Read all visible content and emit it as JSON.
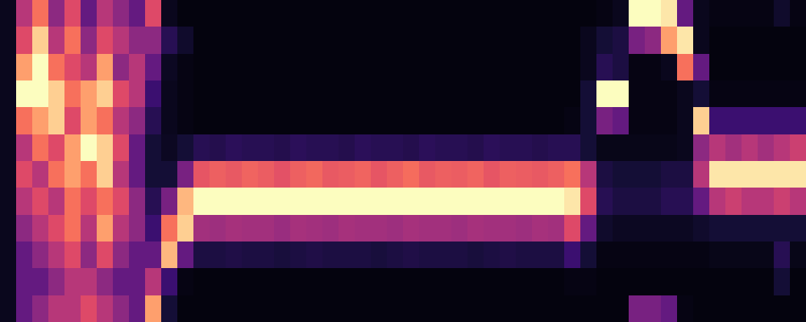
{
  "chart_data": {
    "type": "heatmap",
    "tick_labels": false,
    "grid": false,
    "xlim": [
      -0.5,
      49.5
    ],
    "ylim": [
      11.5,
      -0.5
    ],
    "zlim": [
      0,
      1
    ],
    "cells": [
      [
        0.05,
        0.5,
        0.7,
        0.4,
        0.6,
        0.3,
        0.5,
        0.4,
        0.3,
        0.6,
        0.05,
        0.02,
        0.02,
        0.02,
        0.02,
        0.02,
        0.02,
        0.02,
        0.02,
        0.02,
        0.02,
        0.02,
        0.02,
        0.02,
        0.02,
        0.02,
        0.02,
        0.02,
        0.02,
        0.02,
        0.02,
        0.02,
        0.02,
        0.02,
        0.02,
        0.02,
        0.02,
        0.03,
        0.05,
        1.0,
        1.0,
        0.95,
        0.3,
        0.05,
        0.03,
        0.03,
        0.03,
        0.03,
        0.08,
        0.03
      ],
      [
        0.05,
        0.6,
        0.9,
        0.5,
        0.7,
        0.4,
        0.6,
        0.5,
        0.4,
        0.4,
        0.15,
        0.08,
        0.02,
        0.02,
        0.02,
        0.02,
        0.02,
        0.02,
        0.02,
        0.02,
        0.02,
        0.02,
        0.02,
        0.02,
        0.02,
        0.02,
        0.02,
        0.02,
        0.02,
        0.02,
        0.02,
        0.02,
        0.02,
        0.02,
        0.02,
        0.02,
        0.05,
        0.1,
        0.12,
        0.35,
        0.4,
        0.8,
        0.95,
        0.05,
        0.02,
        0.02,
        0.02,
        0.02,
        0.02,
        0.02
      ],
      [
        0.05,
        0.8,
        1.0,
        0.7,
        0.6,
        0.5,
        0.8,
        0.4,
        0.5,
        0.3,
        0.06,
        0.03,
        0.02,
        0.02,
        0.02,
        0.02,
        0.02,
        0.02,
        0.02,
        0.02,
        0.02,
        0.02,
        0.02,
        0.02,
        0.02,
        0.02,
        0.02,
        0.02,
        0.02,
        0.02,
        0.02,
        0.02,
        0.02,
        0.02,
        0.02,
        0.02,
        0.05,
        0.15,
        0.12,
        0.03,
        0.03,
        0.05,
        0.7,
        0.3,
        0.02,
        0.02,
        0.02,
        0.02,
        0.02,
        0.02
      ],
      [
        0.05,
        1.0,
        1.0,
        0.9,
        0.7,
        0.8,
        0.9,
        0.6,
        0.5,
        0.2,
        0.05,
        0.03,
        0.02,
        0.02,
        0.02,
        0.02,
        0.02,
        0.02,
        0.02,
        0.02,
        0.02,
        0.02,
        0.02,
        0.02,
        0.02,
        0.02,
        0.02,
        0.02,
        0.02,
        0.02,
        0.02,
        0.02,
        0.02,
        0.02,
        0.02,
        0.02,
        0.1,
        1.0,
        1.0,
        0.03,
        0.03,
        0.03,
        0.05,
        0.1,
        0.03,
        0.03,
        0.03,
        0.03,
        0.03,
        0.03
      ],
      [
        0.05,
        0.7,
        0.8,
        0.9,
        0.6,
        0.8,
        0.7,
        0.5,
        0.4,
        0.15,
        0.05,
        0.03,
        0.02,
        0.02,
        0.02,
        0.02,
        0.02,
        0.02,
        0.02,
        0.02,
        0.02,
        0.02,
        0.02,
        0.02,
        0.02,
        0.02,
        0.02,
        0.02,
        0.02,
        0.02,
        0.02,
        0.02,
        0.02,
        0.02,
        0.02,
        0.03,
        0.1,
        0.35,
        0.3,
        0.03,
        0.03,
        0.03,
        0.05,
        0.9,
        0.2,
        0.2,
        0.2,
        0.2,
        0.2,
        0.2
      ],
      [
        0.05,
        0.5,
        0.7,
        0.6,
        0.8,
        1.0,
        0.9,
        0.6,
        0.3,
        0.1,
        0.06,
        0.1,
        0.15,
        0.14,
        0.16,
        0.15,
        0.15,
        0.14,
        0.16,
        0.15,
        0.15,
        0.14,
        0.16,
        0.15,
        0.15,
        0.14,
        0.16,
        0.15,
        0.15,
        0.14,
        0.16,
        0.15,
        0.15,
        0.14,
        0.15,
        0.15,
        0.1,
        0.04,
        0.04,
        0.04,
        0.04,
        0.04,
        0.05,
        0.4,
        0.5,
        0.45,
        0.5,
        0.45,
        0.5,
        0.55
      ],
      [
        0.05,
        0.6,
        0.5,
        0.7,
        0.8,
        0.7,
        0.9,
        0.5,
        0.3,
        0.1,
        0.1,
        0.35,
        0.63,
        0.66,
        0.64,
        0.67,
        0.65,
        0.62,
        0.66,
        0.68,
        0.64,
        0.65,
        0.67,
        0.63,
        0.66,
        0.69,
        0.64,
        0.66,
        0.65,
        0.67,
        0.63,
        0.66,
        0.65,
        0.64,
        0.66,
        0.7,
        0.5,
        0.12,
        0.1,
        0.1,
        0.1,
        0.12,
        0.12,
        0.5,
        0.95,
        0.95,
        0.95,
        0.95,
        0.95,
        0.95
      ],
      [
        0.05,
        0.5,
        0.6,
        0.5,
        0.7,
        0.6,
        0.7,
        0.6,
        0.4,
        0.15,
        0.35,
        0.85,
        1.0,
        1.0,
        1.0,
        1.0,
        1.0,
        1.0,
        1.0,
        1.0,
        1.0,
        1.0,
        1.0,
        1.0,
        1.0,
        1.0,
        1.0,
        1.0,
        1.0,
        1.0,
        1.0,
        1.0,
        1.0,
        1.0,
        1.0,
        0.95,
        0.6,
        0.15,
        0.12,
        0.12,
        0.12,
        0.15,
        0.15,
        0.3,
        0.5,
        0.55,
        0.5,
        0.5,
        0.55,
        0.5
      ],
      [
        0.05,
        0.4,
        0.5,
        0.6,
        0.7,
        0.5,
        0.8,
        0.5,
        0.4,
        0.2,
        0.7,
        0.9,
        0.45,
        0.44,
        0.46,
        0.45,
        0.45,
        0.43,
        0.46,
        0.45,
        0.44,
        0.46,
        0.45,
        0.45,
        0.44,
        0.46,
        0.45,
        0.45,
        0.44,
        0.46,
        0.45,
        0.45,
        0.44,
        0.46,
        0.45,
        0.6,
        0.3,
        0.08,
        0.06,
        0.06,
        0.06,
        0.06,
        0.06,
        0.08,
        0.1,
        0.1,
        0.1,
        0.1,
        0.1,
        0.1
      ],
      [
        0.05,
        0.3,
        0.4,
        0.5,
        0.6,
        0.4,
        0.6,
        0.4,
        0.3,
        0.3,
        0.85,
        0.3,
        0.12,
        0.12,
        0.13,
        0.12,
        0.12,
        0.11,
        0.12,
        0.13,
        0.12,
        0.12,
        0.12,
        0.11,
        0.12,
        0.13,
        0.12,
        0.12,
        0.12,
        0.11,
        0.12,
        0.13,
        0.12,
        0.12,
        0.12,
        0.2,
        0.1,
        0.03,
        0.03,
        0.03,
        0.03,
        0.03,
        0.03,
        0.03,
        0.04,
        0.04,
        0.04,
        0.04,
        0.15,
        0.04
      ],
      [
        0.05,
        0.3,
        0.3,
        0.4,
        0.5,
        0.5,
        0.4,
        0.3,
        0.3,
        0.5,
        0.2,
        0.03,
        0.02,
        0.02,
        0.02,
        0.02,
        0.02,
        0.02,
        0.02,
        0.02,
        0.02,
        0.02,
        0.02,
        0.02,
        0.02,
        0.02,
        0.02,
        0.02,
        0.02,
        0.02,
        0.02,
        0.02,
        0.02,
        0.02,
        0.02,
        0.03,
        0.03,
        0.02,
        0.02,
        0.02,
        0.02,
        0.02,
        0.02,
        0.02,
        0.02,
        0.02,
        0.02,
        0.02,
        0.1,
        0.02
      ],
      [
        0.05,
        0.3,
        0.4,
        0.5,
        0.5,
        0.6,
        0.5,
        0.4,
        0.3,
        0.8,
        0.1,
        0.02,
        0.02,
        0.02,
        0.02,
        0.02,
        0.02,
        0.02,
        0.02,
        0.02,
        0.02,
        0.02,
        0.02,
        0.02,
        0.02,
        0.02,
        0.02,
        0.02,
        0.02,
        0.02,
        0.02,
        0.02,
        0.02,
        0.02,
        0.02,
        0.02,
        0.02,
        0.02,
        0.02,
        0.35,
        0.35,
        0.3,
        0.03,
        0.02,
        0.02,
        0.02,
        0.02,
        0.02,
        0.02,
        0.02
      ]
    ]
  }
}
